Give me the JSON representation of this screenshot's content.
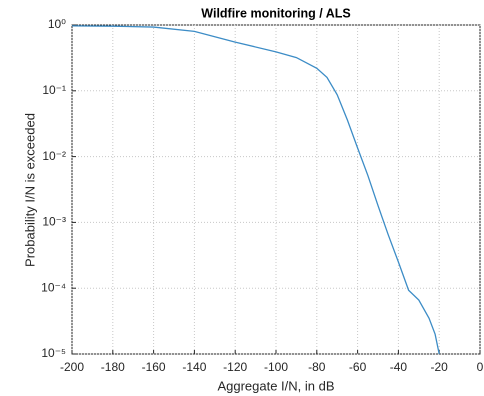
{
  "chart_data": {
    "type": "line",
    "title": "Wildfire monitoring / ALS",
    "x_label": "Aggregate I/N, in dB",
    "y_label": "Probability I/N is exceeded",
    "y_scale": "log",
    "grid": true,
    "xlim": [
      -200,
      0
    ],
    "xticks": [
      -200,
      -180,
      -160,
      -140,
      -120,
      -100,
      -80,
      -60,
      -40,
      -20,
      0
    ],
    "ylim": [
      1e-05,
      1
    ],
    "yticks": [
      {
        "value": 1e-05,
        "label": "10⁻⁵"
      },
      {
        "value": 0.0001,
        "label": "10⁻⁴"
      },
      {
        "value": 0.001,
        "label": "10⁻³"
      },
      {
        "value": 0.01,
        "label": "10⁻²"
      },
      {
        "value": 0.1,
        "label": "10⁻¹"
      },
      {
        "value": 1,
        "label": "10⁰"
      }
    ],
    "series": [
      {
        "color": "#3c8cc6",
        "x": [
          -200,
          -180,
          -160,
          -140,
          -120,
          -100,
          -90,
          -80,
          -75,
          -70,
          -65,
          -60,
          -55,
          -50,
          -45,
          -40,
          -35,
          -30,
          -25,
          -22,
          -20
        ],
        "values": [
          0.97,
          0.96,
          0.93,
          0.8,
          0.55,
          0.39,
          0.32,
          0.22,
          0.16,
          0.087,
          0.036,
          0.0135,
          0.0052,
          0.0018,
          0.00065,
          0.00025,
          9.3e-05,
          6.6e-05,
          3.5e-05,
          2e-05,
          1e-05
        ]
      }
    ]
  }
}
